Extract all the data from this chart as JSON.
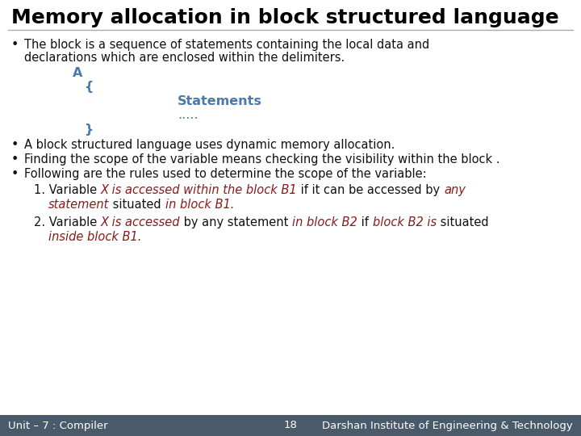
{
  "title": "Memory allocation in block structured language",
  "title_fontsize": 18,
  "bg_color": "#ffffff",
  "footer_bg": "#4a5a6a",
  "footer_text_left": "Unit – 7 : Compiler",
  "footer_text_center": "18",
  "footer_text_right": "Darshan Institute of Engineering & Technology",
  "footer_fontsize": 9.5,
  "footer_color": "#ffffff",
  "blue_color": "#4a7aad",
  "red_color": "#8b1a1a",
  "black_color": "#111111",
  "body_fontsize": 10.5,
  "code_color": "#4a7aad",
  "line_color": "#aaaaaa"
}
